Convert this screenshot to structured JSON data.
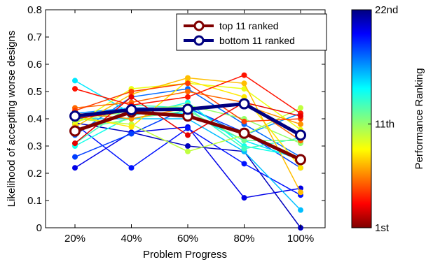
{
  "chart_data": {
    "type": "line",
    "categories": [
      "20%",
      "40%",
      "60%",
      "80%",
      "100%"
    ],
    "xlabel": "Problem Progress",
    "ylabel": "Likelihood of accepting worse designs",
    "ylim": [
      0,
      0.8
    ],
    "yticks": [
      "0",
      "0.1",
      "0.2",
      "0.3",
      "0.4",
      "0.5",
      "0.6",
      "0.7",
      "0.8"
    ],
    "grid": false,
    "legend_placement": "top-right",
    "colorbar": {
      "label": "Performance Ranking",
      "ticks": [
        {
          "label": "1st",
          "rank": 1
        },
        {
          "label": "11th",
          "rank": 11
        },
        {
          "label": "22nd",
          "rank": 22
        }
      ],
      "colormap": "jet",
      "dark_low": "#7f0000",
      "dark_high": "#000080"
    },
    "rank_series": [
      {
        "rank": 1,
        "values": [
          0.385,
          0.35,
          0.3,
          0.28,
          0.0
        ]
      },
      {
        "rank": 2,
        "values": [
          0.22,
          0.35,
          0.37,
          0.11,
          0.145
        ]
      },
      {
        "rank": 3,
        "values": [
          0.38,
          0.22,
          0.365,
          0.235,
          0.12
        ]
      },
      {
        "rank": 4,
        "values": [
          0.26,
          0.345,
          0.44,
          0.35,
          0.22
        ]
      },
      {
        "rank": 5,
        "values": [
          0.34,
          0.48,
          0.51,
          0.38,
          0.26
        ]
      },
      {
        "rank": 6,
        "values": [
          0.42,
          0.44,
          0.44,
          0.34,
          0.42
        ]
      },
      {
        "rank": 7,
        "values": [
          0.4,
          0.4,
          0.4,
          0.28,
          0.065
        ]
      },
      {
        "rank": 8,
        "values": [
          0.54,
          0.42,
          0.42,
          0.32,
          0.25
        ]
      },
      {
        "rank": 9,
        "values": [
          0.3,
          0.41,
          0.46,
          0.3,
          0.26
        ]
      },
      {
        "rank": 10,
        "values": [
          0.31,
          0.45,
          0.44,
          0.29,
          0.33
        ]
      },
      {
        "rank": 11,
        "values": [
          0.36,
          0.4,
          0.43,
          0.32,
          0.32
        ]
      },
      {
        "rank": 12,
        "values": [
          0.39,
          0.43,
          0.45,
          0.4,
          0.31
        ]
      },
      {
        "rank": 13,
        "values": [
          0.4,
          0.38,
          0.28,
          0.34,
          0.44
        ]
      },
      {
        "rank": 14,
        "values": [
          0.38,
          0.51,
          0.53,
          0.51,
          0.36
        ]
      },
      {
        "rank": 15,
        "values": [
          0.41,
          0.37,
          0.54,
          0.48,
          0.22
        ]
      },
      {
        "rank": 16,
        "values": [
          0.37,
          0.49,
          0.55,
          0.53,
          0.13
        ]
      },
      {
        "rank": 17,
        "values": [
          0.42,
          0.4,
          0.44,
          0.45,
          0.38
        ]
      },
      {
        "rank": 18,
        "values": [
          0.44,
          0.46,
          0.5,
          0.46,
          0.32
        ]
      },
      {
        "rank": 19,
        "values": [
          0.43,
          0.5,
          0.53,
          0.39,
          0.4
        ]
      },
      {
        "rank": 20,
        "values": [
          0.51,
          0.45,
          0.48,
          0.56,
          0.42
        ]
      },
      {
        "rank": 21,
        "values": [
          0.31,
          0.48,
          0.34,
          0.46,
          0.41
        ]
      },
      {
        "rank": 22,
        "values": [
          0.4,
          0.43,
          0.44,
          0.45,
          0.34
        ]
      }
    ],
    "series": [
      {
        "name": "top 11 ranked",
        "color": "#800000",
        "values": [
          0.355,
          0.425,
          0.41,
          0.347,
          0.25
        ]
      },
      {
        "name": "bottom 11 ranked",
        "color": "#000080",
        "values": [
          0.41,
          0.433,
          0.435,
          0.455,
          0.34
        ]
      }
    ]
  }
}
